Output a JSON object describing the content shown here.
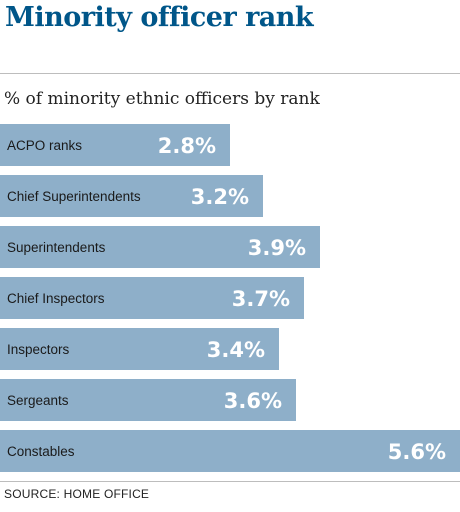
{
  "title": "Minority officer rank",
  "subtitle": "% of minority ethnic officers by rank",
  "source": "SOURCE: HOME OFFICE",
  "colors": {
    "bar": "#8eafc9",
    "title": "#005689"
  },
  "chart_data": {
    "type": "bar",
    "orientation": "horizontal",
    "title": "Minority officer rank",
    "subtitle": "% of minority ethnic officers by rank",
    "categories": [
      "ACPO ranks",
      "Chief Superintendents",
      "Superintendents",
      "Chief Inspectors",
      "Inspectors",
      "Sergeants",
      "Constables"
    ],
    "values": [
      2.8,
      3.2,
      3.9,
      3.7,
      3.4,
      3.6,
      5.6
    ],
    "value_labels": [
      "2.8%",
      "3.2%",
      "3.9%",
      "3.7%",
      "3.4%",
      "3.6%",
      "5.6%"
    ],
    "unit": "%",
    "xlim": [
      0,
      5.6
    ],
    "grid": false,
    "legend": "none"
  }
}
